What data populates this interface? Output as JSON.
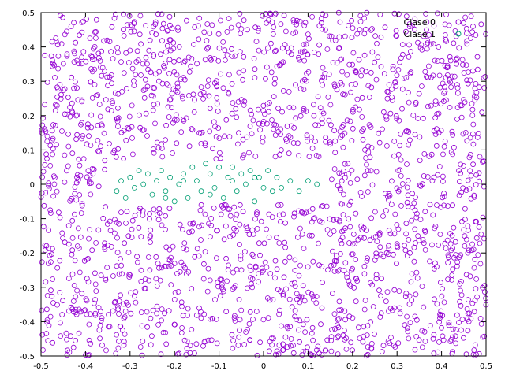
{
  "chart_data": {
    "type": "scatter",
    "title": "",
    "xlabel": "",
    "ylabel": "",
    "xlim": [
      -0.5,
      0.5
    ],
    "ylim": [
      -0.5,
      0.5
    ],
    "grid": false,
    "legend_position": "top-right",
    "x_ticks": [
      "-0.5",
      "-0.4",
      "-0.3",
      "-0.2",
      "-0.1",
      "0",
      "0.1",
      "0.2",
      "0.3",
      "0.4",
      "0.5"
    ],
    "y_ticks": [
      "-0.5",
      "-0.4",
      "-0.3",
      "-0.2",
      "-0.1",
      "0",
      "0.1",
      "0.2",
      "0.3",
      "0.4",
      "0.5"
    ],
    "series": [
      {
        "name": "Clase 0",
        "color": "#9400d3",
        "marker": "open-circle",
        "count": 2000,
        "distribution": "uniform over the plot area, excluding the band occupied by Clase 1"
      },
      {
        "name": "Clase 1",
        "color": "#009e73",
        "marker": "open-circle",
        "points": [
          [
            -0.33,
            -0.02
          ],
          [
            -0.32,
            0.01
          ],
          [
            -0.31,
            -0.04
          ],
          [
            -0.3,
            0.02
          ],
          [
            -0.29,
            -0.01
          ],
          [
            -0.28,
            0.04
          ],
          [
            -0.27,
            0.0
          ],
          [
            -0.26,
            0.03
          ],
          [
            -0.25,
            -0.03
          ],
          [
            -0.24,
            0.01
          ],
          [
            -0.23,
            0.04
          ],
          [
            -0.22,
            -0.02
          ],
          [
            -0.21,
            0.02
          ],
          [
            -0.2,
            -0.05
          ],
          [
            -0.19,
            0.0
          ],
          [
            -0.18,
            0.03
          ],
          [
            -0.17,
            -0.04
          ],
          [
            -0.16,
            0.05
          ],
          [
            -0.15,
            0.01
          ],
          [
            -0.14,
            -0.02
          ],
          [
            -0.13,
            0.06
          ],
          [
            -0.12,
            0.03
          ],
          [
            -0.11,
            -0.01
          ],
          [
            -0.1,
            0.05
          ],
          [
            -0.09,
            -0.04
          ],
          [
            -0.08,
            0.02
          ],
          [
            -0.07,
            0.05
          ],
          [
            -0.06,
            -0.02
          ],
          [
            -0.05,
            0.03
          ],
          [
            -0.04,
            0.0
          ],
          [
            -0.03,
            0.04
          ],
          [
            -0.02,
            -0.05
          ],
          [
            -0.01,
            0.02
          ],
          [
            0.0,
            -0.01
          ],
          [
            0.01,
            0.04
          ],
          [
            0.02,
            -0.02
          ],
          [
            0.03,
            0.02
          ],
          [
            0.04,
            -0.01
          ],
          [
            0.06,
            0.01
          ],
          [
            0.08,
            -0.02
          ],
          [
            0.1,
            0.01
          ],
          [
            0.12,
            0.0
          ],
          [
            -0.22,
            -0.04
          ],
          [
            -0.18,
            0.01
          ],
          [
            -0.12,
            -0.03
          ],
          [
            -0.07,
            0.01
          ],
          [
            -0.02,
            0.02
          ]
        ]
      }
    ]
  },
  "legend": [
    {
      "label": "Clase 0",
      "color": "#9400d3"
    },
    {
      "label": "Clase 1",
      "color": "#009e73"
    }
  ]
}
